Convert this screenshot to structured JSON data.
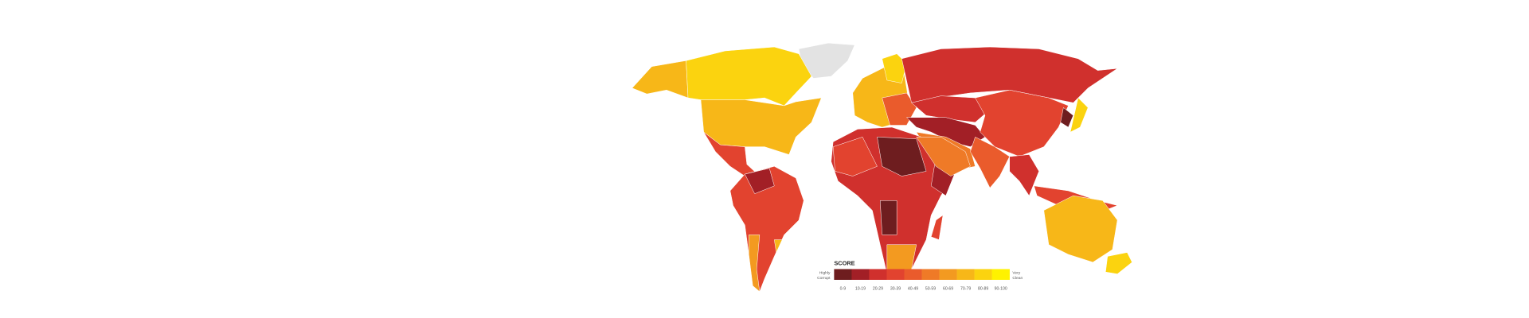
{
  "legend": {
    "title": "SCORE",
    "low_label": [
      "Highly",
      "Corrupt"
    ],
    "high_label": [
      "Very",
      "Clean"
    ],
    "bins": [
      {
        "label": "0-9",
        "color": "#6e1d1f"
      },
      {
        "label": "10-19",
        "color": "#a21f26"
      },
      {
        "label": "20-29",
        "color": "#d0302d"
      },
      {
        "label": "30-39",
        "color": "#e2432f"
      },
      {
        "label": "40-49",
        "color": "#ea5b2c"
      },
      {
        "label": "50-59",
        "color": "#ef7a27"
      },
      {
        "label": "60-69",
        "color": "#f39a20"
      },
      {
        "label": "70-79",
        "color": "#f7b718"
      },
      {
        "label": "80-89",
        "color": "#fbd30f"
      },
      {
        "label": "90-100",
        "color": "#fff200"
      }
    ]
  }
}
